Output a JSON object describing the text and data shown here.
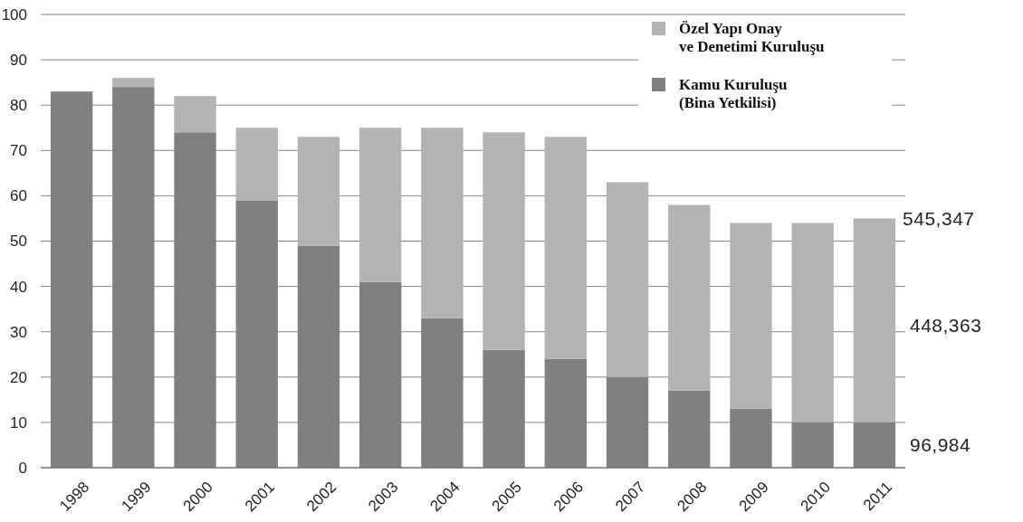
{
  "chart_data": {
    "type": "bar",
    "stacked": true,
    "categories": [
      "1998",
      "1999",
      "2000",
      "2001",
      "2002",
      "2003",
      "2004",
      "2005",
      "2006",
      "2007",
      "2008",
      "2009",
      "2010",
      "2011"
    ],
    "series": [
      {
        "name": "Kamu Kuruluşu\n(Bina Yetkilisi)",
        "color": "#808080",
        "values": [
          83,
          84,
          74,
          59,
          49,
          41,
          33,
          26,
          24,
          20,
          17,
          13,
          10,
          10
        ]
      },
      {
        "name": "Özel Yapı Onay\nve Denetimi Kuruluşu",
        "color": "#b3b3b3",
        "values": [
          0,
          2,
          8,
          16,
          24,
          34,
          42,
          48,
          49,
          43,
          41,
          41,
          44,
          45
        ]
      }
    ],
    "ylim": [
      0,
      100
    ],
    "yticks": [
      0,
      10,
      20,
      30,
      40,
      50,
      60,
      70,
      80,
      90,
      100
    ],
    "grid": "y",
    "legend": "top right",
    "annotations": [
      {
        "text": "545,347",
        "x": "2011",
        "y": 55
      },
      "448,363",
      "96,984"
    ]
  }
}
